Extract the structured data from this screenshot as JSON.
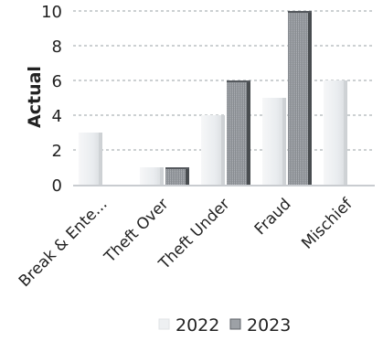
{
  "chart_data": {
    "type": "bar",
    "title": "",
    "ylabel": "Actual",
    "xlabel": "",
    "ylim": [
      0,
      10
    ],
    "yticks": [
      0,
      2,
      4,
      6,
      8,
      10
    ],
    "grid": true,
    "legend_position": "bottom",
    "categories": [
      "Break & Ente...",
      "Theft Over",
      "Theft Under",
      "Fraud",
      "Mischief"
    ],
    "series": [
      {
        "name": "2022",
        "values": [
          3,
          1,
          4,
          5,
          6
        ],
        "color": "#eceff2"
      },
      {
        "name": "2023",
        "values": [
          0,
          1,
          6,
          10,
          0
        ],
        "color": "#9b9fa4"
      }
    ]
  }
}
